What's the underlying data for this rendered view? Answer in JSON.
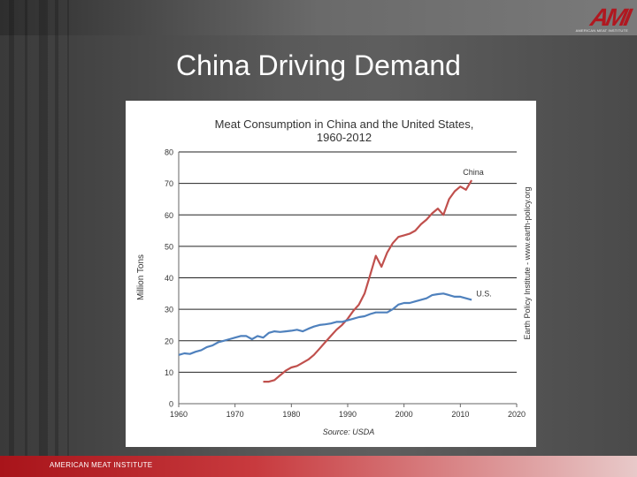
{
  "slide": {
    "title": "China Driving Demand",
    "footer": "AMERICAN MEAT INSTITUTE",
    "logo_text": "AMI",
    "logo_subtext": "AMERICAN MEAT INSTITUTE"
  },
  "colors": {
    "china": "#c0504d",
    "us": "#4f81bd",
    "brand": "#b01820"
  },
  "chart_data": {
    "type": "line",
    "title": "Meat Consumption in China and the United States,",
    "subtitle": "1960-2012",
    "xlabel": "",
    "ylabel": "Million Tons",
    "source": "Source: USDA",
    "credit": "Earth Policy Institute - www.earth-policy.org",
    "xlim": [
      1960,
      2020
    ],
    "ylim": [
      0,
      80
    ],
    "xticks": [
      "1960",
      "1970",
      "1980",
      "1990",
      "2000",
      "2010",
      "2020"
    ],
    "yticks": [
      "0",
      "10",
      "20",
      "30",
      "40",
      "50",
      "60",
      "70",
      "80"
    ],
    "series": [
      {
        "name": "China",
        "label": "China",
        "x": [
          1975,
          1976,
          1977,
          1978,
          1979,
          1980,
          1981,
          1982,
          1983,
          1984,
          1985,
          1986,
          1987,
          1988,
          1989,
          1990,
          1991,
          1992,
          1993,
          1994,
          1995,
          1996,
          1997,
          1998,
          1999,
          2000,
          2001,
          2002,
          2003,
          2004,
          2005,
          2006,
          2007,
          2008,
          2009,
          2010,
          2011,
          2012
        ],
        "values": [
          7,
          7,
          7.5,
          9,
          10.5,
          11.5,
          12,
          13,
          14,
          15.5,
          17.5,
          19.5,
          21.5,
          23.5,
          25,
          27,
          29.5,
          31.5,
          35,
          41,
          47,
          43.5,
          48,
          51,
          53,
          53.5,
          54,
          55,
          57,
          58.5,
          60.5,
          62,
          60,
          65,
          67.5,
          69,
          68,
          71
        ]
      },
      {
        "name": "U.S.",
        "label": "U.S.",
        "x": [
          1960,
          1961,
          1962,
          1963,
          1964,
          1965,
          1966,
          1967,
          1968,
          1969,
          1970,
          1971,
          1972,
          1973,
          1974,
          1975,
          1976,
          1977,
          1978,
          1979,
          1980,
          1981,
          1982,
          1983,
          1984,
          1985,
          1986,
          1987,
          1988,
          1989,
          1990,
          1991,
          1992,
          1993,
          1994,
          1995,
          1996,
          1997,
          1998,
          1999,
          2000,
          2001,
          2002,
          2003,
          2004,
          2005,
          2006,
          2007,
          2008,
          2009,
          2010,
          2011,
          2012
        ],
        "values": [
          15.5,
          16,
          15.8,
          16.5,
          17,
          18,
          18.5,
          19.5,
          20,
          20.5,
          21,
          21.5,
          21.5,
          20.5,
          21.5,
          21,
          22.5,
          23,
          22.8,
          23,
          23.2,
          23.5,
          23,
          23.8,
          24.5,
          25,
          25.2,
          25.5,
          26,
          26,
          26.5,
          27,
          27.5,
          27.8,
          28.5,
          29,
          29,
          29,
          30,
          31.5,
          32,
          32,
          32.5,
          33,
          33.5,
          34.5,
          34.8,
          35,
          34.5,
          34,
          34,
          33.5,
          33
        ]
      }
    ]
  }
}
